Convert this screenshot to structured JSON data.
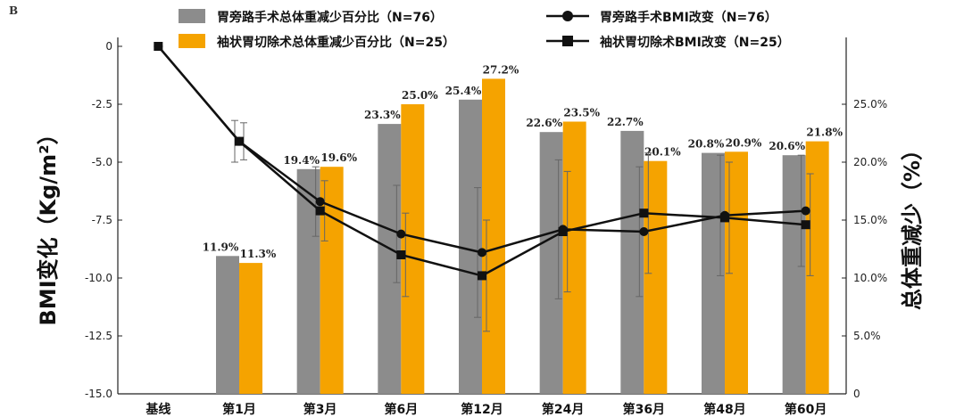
{
  "panel_label": "B",
  "chart_data": {
    "type": "bar",
    "categories": [
      "基线",
      "第1月",
      "第3月",
      "第6月",
      "第12月",
      "第24月",
      "第36月",
      "第48月",
      "第60月"
    ],
    "ylabel_left": "BMI变化（Kg/m²）",
    "ylabel_right": "总体重减少（%）",
    "ylim_left": [
      -15.0,
      0
    ],
    "yticks_left": [
      "0",
      "-2.5",
      "-5.0",
      "-7.5",
      "-10.0",
      "-12.5",
      "-15.0"
    ],
    "ylim_right": [
      0,
      30
    ],
    "yticks_right": [
      "0",
      "5.0%",
      "10.0%",
      "15.0%",
      "20.0%",
      "25.0%"
    ],
    "bar_series": [
      {
        "name": "胃旁路手术总体重减少百分比（N=76）",
        "color": "#8c8c8c",
        "values": [
          null,
          11.9,
          19.4,
          23.3,
          25.4,
          22.6,
          22.7,
          20.8,
          20.6
        ],
        "labels": [
          "",
          "11.9%",
          "19.4%",
          "23.3%",
          "25.4%",
          "22.6%",
          "22.7%",
          "20.8%",
          "20.6%"
        ]
      },
      {
        "name": "袖状胃切除术总体重减少百分比（N=25）",
        "color": "#f5a300",
        "values": [
          null,
          11.3,
          19.6,
          25.0,
          27.2,
          23.5,
          20.1,
          20.9,
          21.8
        ],
        "labels": [
          "",
          "11.3%",
          "19.6%",
          "25.0%",
          "27.2%",
          "23.5%",
          "20.1%",
          "20.9%",
          "21.8%"
        ]
      }
    ],
    "line_series": [
      {
        "name": "胃旁路手术BMI改变（N=76）",
        "marker": "circle",
        "color": "#111111",
        "values": [
          0,
          -4.1,
          -6.7,
          -8.1,
          -8.9,
          -7.9,
          -8.0,
          -7.3,
          -7.1
        ],
        "error": [
          0,
          0.9,
          1.5,
          2.1,
          2.8,
          3.0,
          2.8,
          2.6,
          2.4
        ]
      },
      {
        "name": "袖状胃切除术BMI改变（N=25）",
        "marker": "square",
        "color": "#111111",
        "values": [
          0,
          -4.1,
          -7.1,
          -9.0,
          -9.9,
          -8.0,
          -7.2,
          -7.4,
          -7.7
        ],
        "error": [
          0,
          0.8,
          1.3,
          1.8,
          2.4,
          2.6,
          2.6,
          2.4,
          2.2
        ]
      }
    ],
    "grid": false,
    "legend_position": "top"
  }
}
